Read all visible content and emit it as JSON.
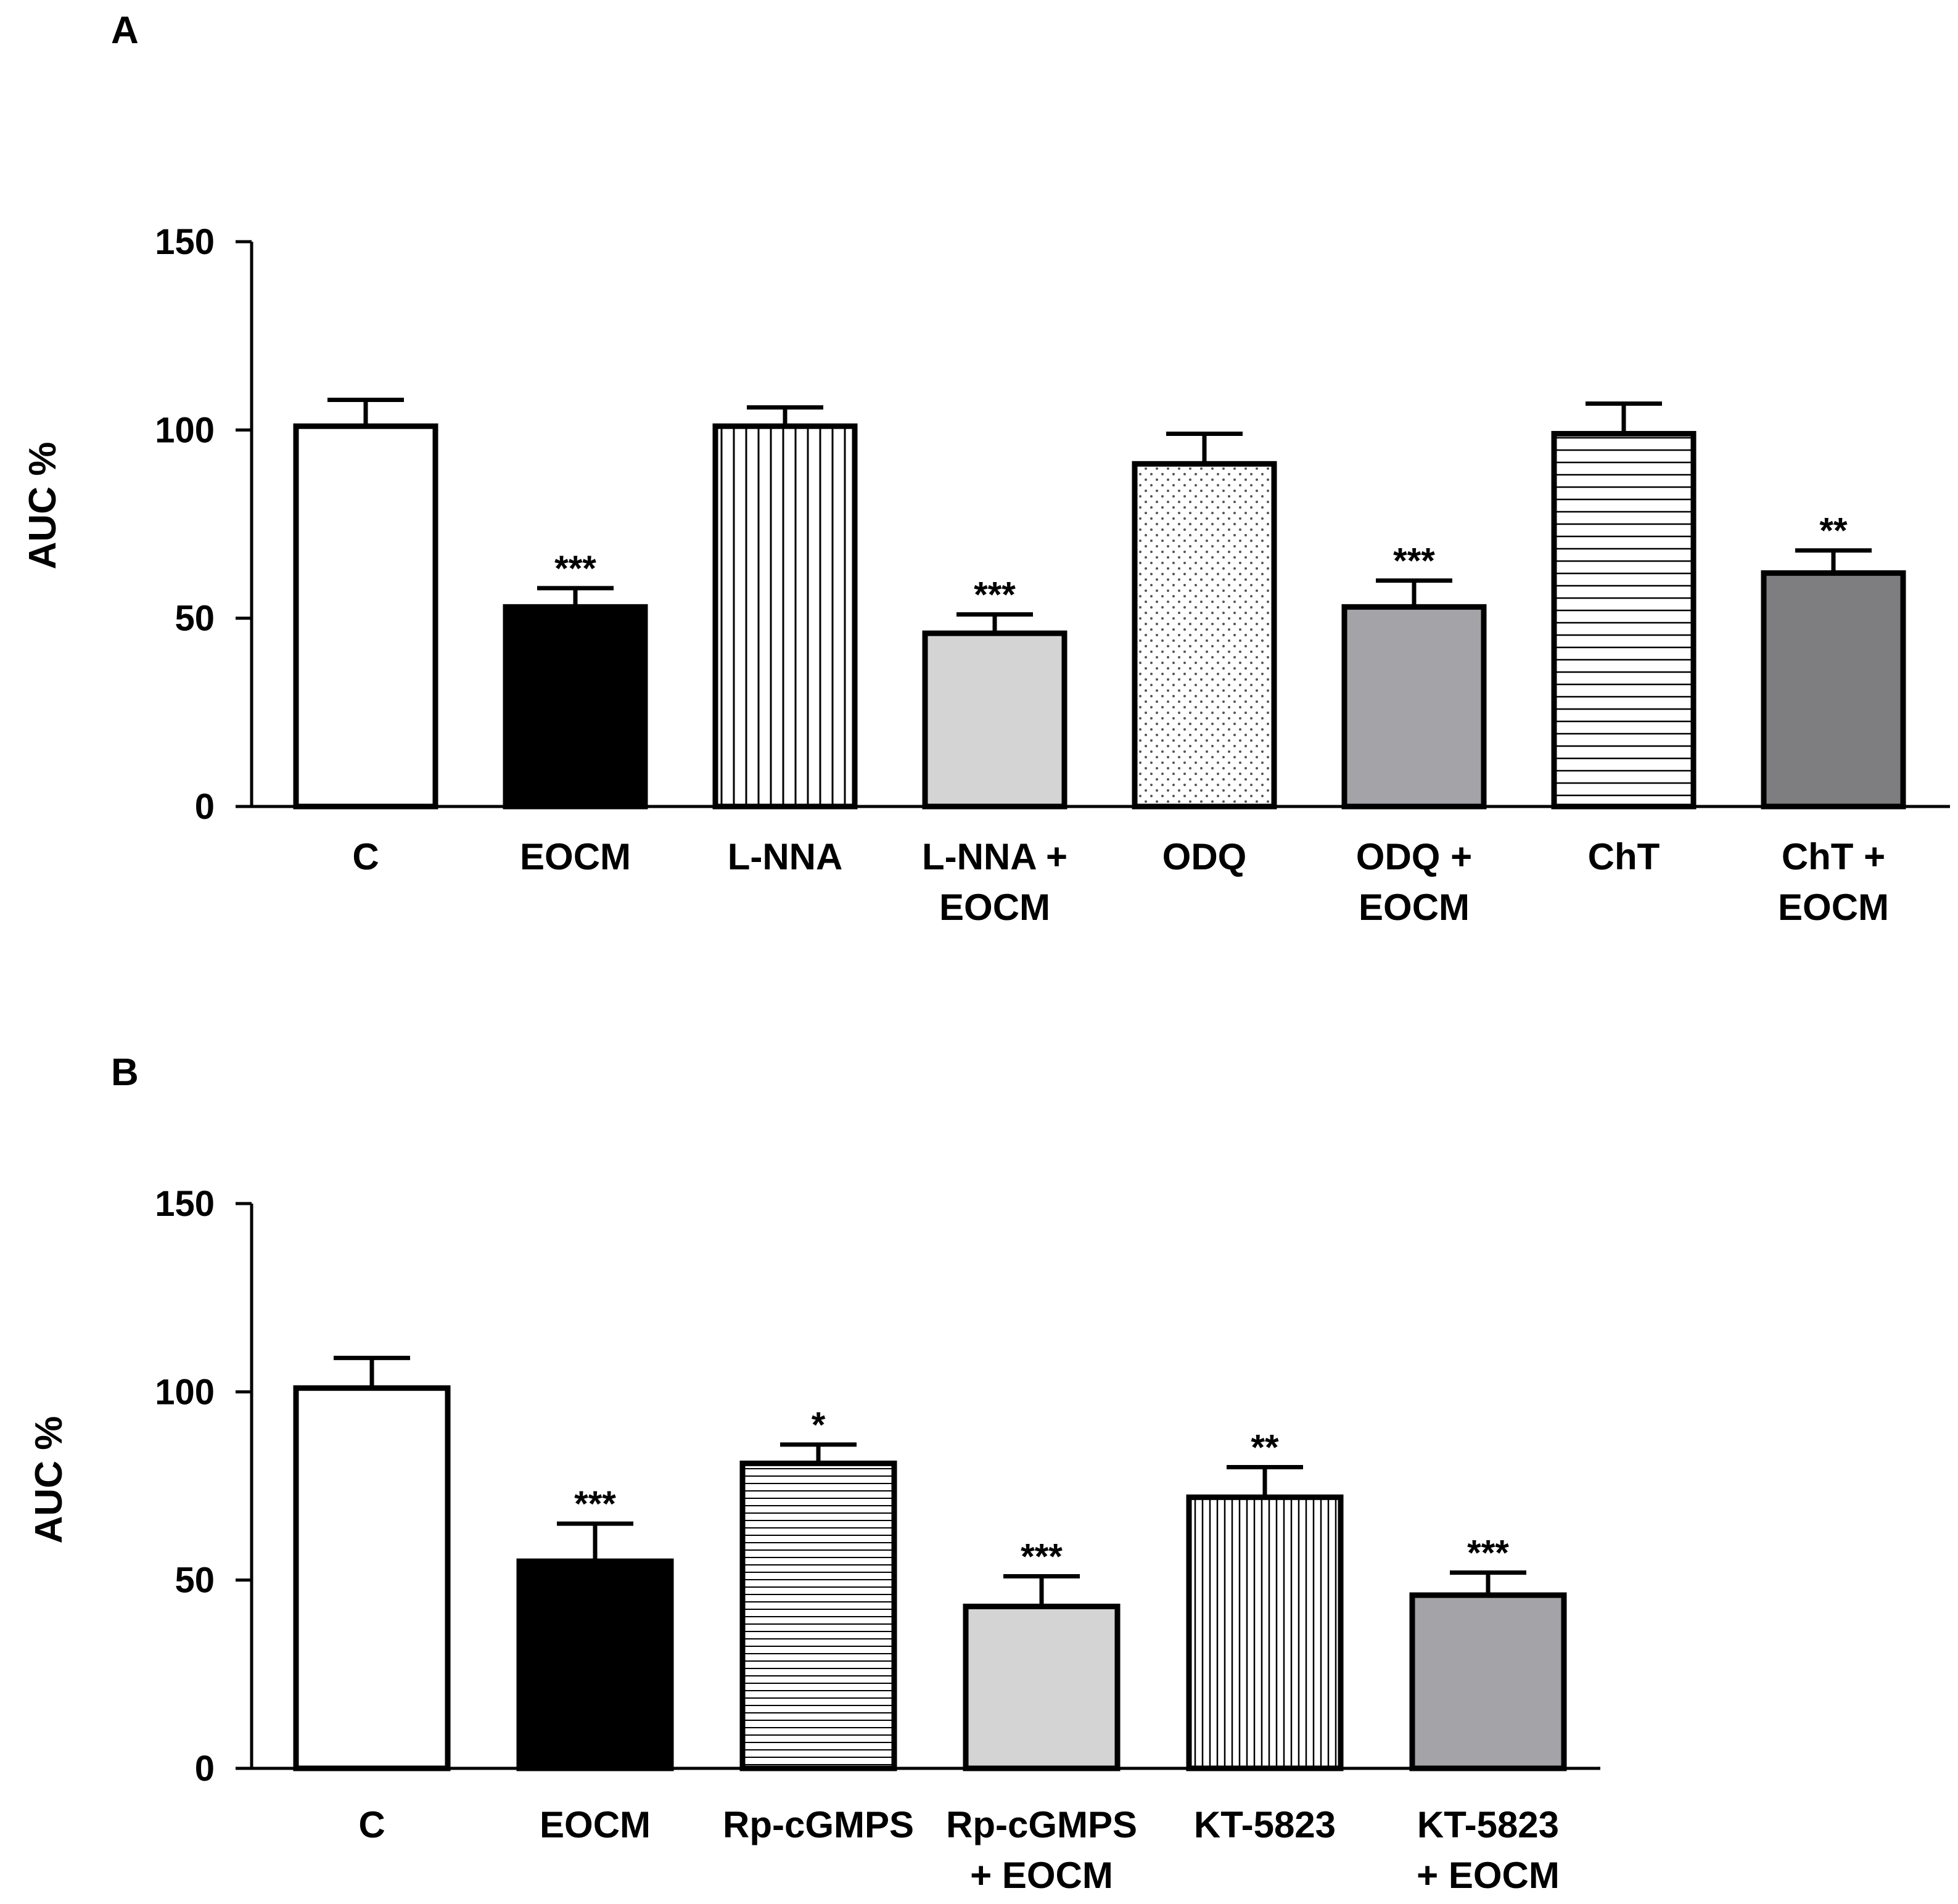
{
  "chart_data": [
    {
      "panel": "A",
      "type": "bar",
      "ylabel": "AUC  %",
      "ylim": [
        0,
        150
      ],
      "yticks": [
        "0",
        "50",
        "100",
        "150"
      ],
      "grid": false,
      "categories": [
        {
          "lines": [
            "C"
          ],
          "value": 101,
          "error": 7,
          "significance": "",
          "fill": "white"
        },
        {
          "lines": [
            "EOCM"
          ],
          "value": 53,
          "error": 5,
          "significance": "***",
          "fill": "black"
        },
        {
          "lines": [
            "L-NNA"
          ],
          "value": 101,
          "error": 5,
          "significance": "",
          "fill": "vertical-lines"
        },
        {
          "lines": [
            "L-NNA +",
            "EOCM"
          ],
          "value": 46,
          "error": 5,
          "significance": "***",
          "fill": "light-gray"
        },
        {
          "lines": [
            "ODQ"
          ],
          "value": 91,
          "error": 8,
          "significance": "",
          "fill": "dots"
        },
        {
          "lines": [
            "ODQ +",
            "EOCM"
          ],
          "value": 53,
          "error": 7,
          "significance": "***",
          "fill": "mid-gray"
        },
        {
          "lines": [
            "ChT"
          ],
          "value": 99,
          "error": 8,
          "significance": "",
          "fill": "horizontal-lines"
        },
        {
          "lines": [
            "ChT +",
            "EOCM"
          ],
          "value": 62,
          "error": 6,
          "significance": "**",
          "fill": "dark-gray"
        }
      ]
    },
    {
      "panel": "B",
      "type": "bar",
      "ylabel": "AUC %",
      "ylim": [
        0,
        150
      ],
      "yticks": [
        "0",
        "50",
        "100",
        "150"
      ],
      "grid": false,
      "categories": [
        {
          "lines": [
            "C"
          ],
          "value": 101,
          "error": 8,
          "significance": "",
          "fill": "white"
        },
        {
          "lines": [
            "EOCM"
          ],
          "value": 55,
          "error": 10,
          "significance": "***",
          "fill": "black"
        },
        {
          "lines": [
            "Rp-cGMPS"
          ],
          "value": 81,
          "error": 5,
          "significance": "*",
          "fill": "fine-horizontal-lines"
        },
        {
          "lines": [
            "Rp-cGMPS",
            "+ EOCM"
          ],
          "value": 43,
          "error": 8,
          "significance": "***",
          "fill": "light-gray"
        },
        {
          "lines": [
            "KT-5823"
          ],
          "value": 72,
          "error": 8,
          "significance": "**",
          "fill": "fine-vertical-lines"
        },
        {
          "lines": [
            "KT-5823",
            "+ EOCM"
          ],
          "value": 46,
          "error": 6,
          "significance": "***",
          "fill": "mid-gray"
        }
      ]
    }
  ]
}
